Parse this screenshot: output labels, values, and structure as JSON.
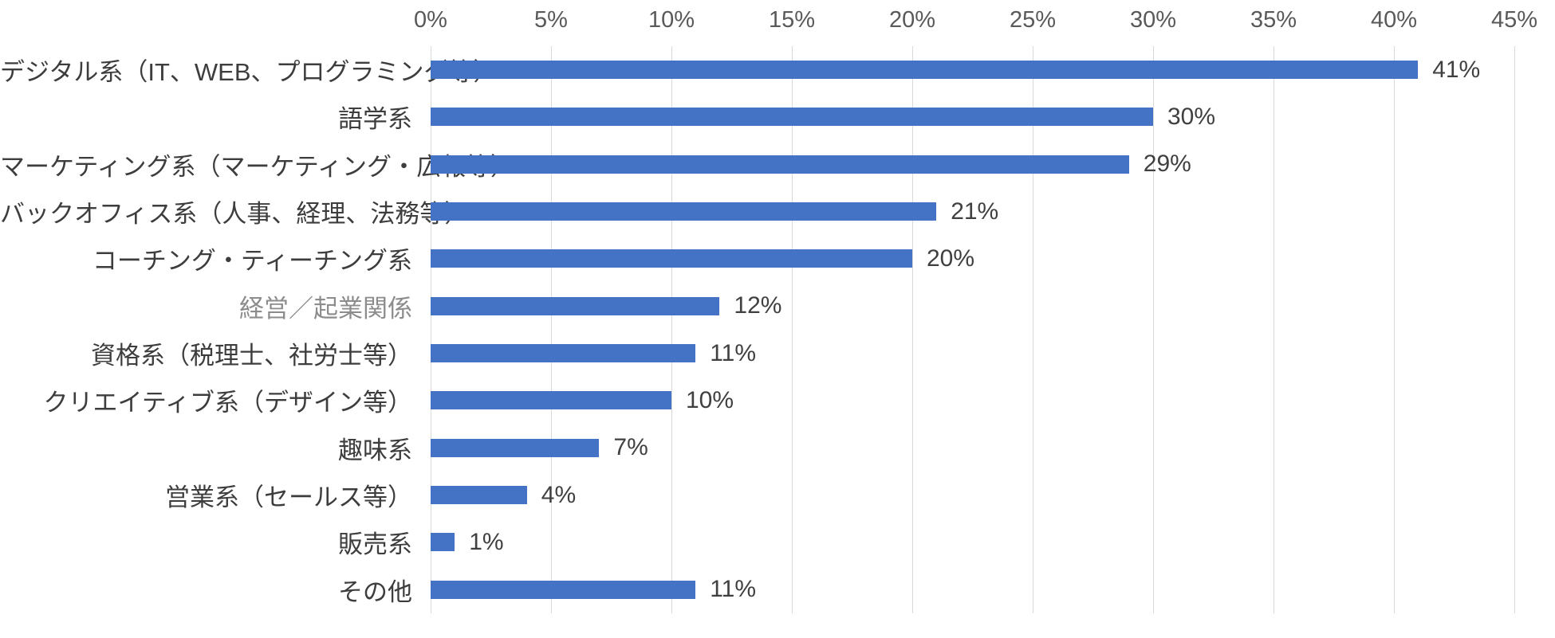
{
  "chart_data": {
    "type": "bar",
    "orientation": "horizontal",
    "title": "",
    "xlabel": "",
    "ylabel": "",
    "axis_position": "top",
    "grid": true,
    "xlim": [
      0,
      45
    ],
    "axis_ticks": [
      "0%",
      "5%",
      "10%",
      "15%",
      "20%",
      "25%",
      "30%",
      "35%",
      "40%",
      "45%"
    ],
    "categories": [
      "デジタル系（IT、WEB、プログラミング等）",
      "語学系",
      "マーケティング系（マーケティング・広報等）",
      "バックオフィス系（人事、経理、法務等）",
      "コーチング・ティーチング系",
      "経営／起業関係",
      "資格系（税理士、社労士等）",
      "クリエイティブ系（デザイン等）",
      "趣味系",
      "営業系（セールス等）",
      "販売系",
      "その他"
    ],
    "values": [
      41,
      30,
      29,
      21,
      20,
      12,
      11,
      10,
      7,
      4,
      1,
      11
    ],
    "value_labels": [
      "41%",
      "30%",
      "29%",
      "21%",
      "20%",
      "12%",
      "11%",
      "10%",
      "7%",
      "4%",
      "1%",
      "11%"
    ],
    "muted_category_index": 5,
    "colors": {
      "bar": "#4472c4",
      "gridline": "#d9d9d9",
      "category_label": "#3d3d3d",
      "muted_category_label": "#8c8c8c",
      "value_label": "#404040",
      "axis_label": "#595959",
      "background": "#ffffff"
    }
  }
}
